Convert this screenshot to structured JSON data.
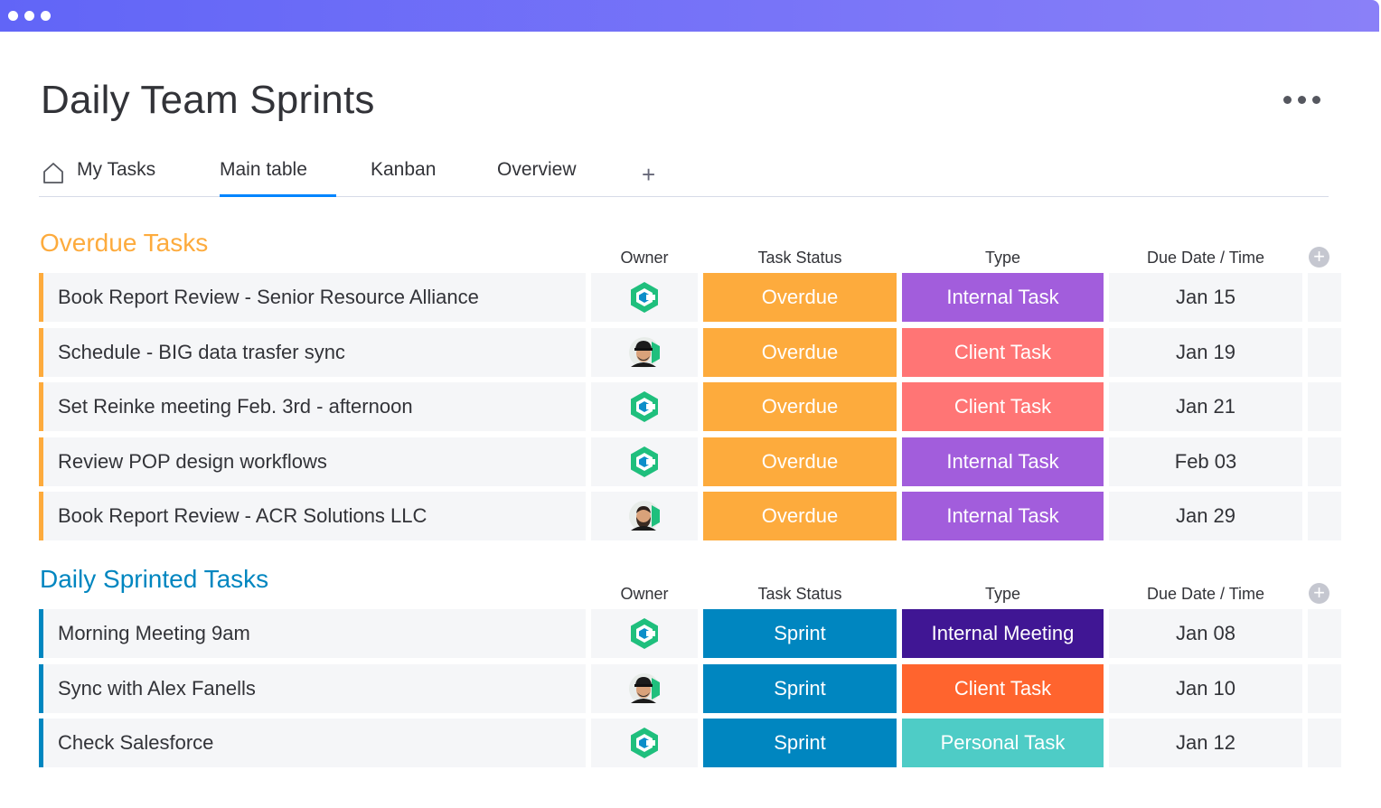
{
  "window": {
    "accent_from": "#6165f7",
    "accent_to": "#8a80f8"
  },
  "board": {
    "title": "Daily Team Sprints"
  },
  "tabs": [
    {
      "label": "My Tasks",
      "icon": "home-icon"
    },
    {
      "label": "Main table",
      "active": true
    },
    {
      "label": "Kanban"
    },
    {
      "label": "Overview"
    }
  ],
  "tab_add_label": "+",
  "columns": {
    "owner": "Owner",
    "status": "Task Status",
    "type": "Type",
    "due": "Due Date / Time"
  },
  "groups": [
    {
      "title": "Overdue Tasks",
      "color": "#fdab3d",
      "rows": [
        {
          "name": "Book Report Review - Senior Resource Alliance",
          "owner": "logo",
          "status": "Overdue",
          "status_color": "#fdab3d",
          "type": "Internal Task",
          "type_color": "#a25ddc",
          "due": "Jan 15"
        },
        {
          "name": "Schedule - BIG data trasfer sync",
          "owner": "person-cap",
          "status": "Overdue",
          "status_color": "#fdab3d",
          "type": "Client Task",
          "type_color": "#ff7575",
          "due": "Jan 19"
        },
        {
          "name": "Set Reinke meeting Feb. 3rd - afternoon",
          "owner": "logo",
          "status": "Overdue",
          "status_color": "#fdab3d",
          "type": "Client Task",
          "type_color": "#ff7575",
          "due": "Jan 21"
        },
        {
          "name": "Review POP design workflows",
          "owner": "logo",
          "status": "Overdue",
          "status_color": "#fdab3d",
          "type": "Internal Task",
          "type_color": "#a25ddc",
          "due": "Feb 03"
        },
        {
          "name": "Book Report Review - ACR Solutions LLC",
          "owner": "person-beard",
          "status": "Overdue",
          "status_color": "#fdab3d",
          "type": "Internal Task",
          "type_color": "#a25ddc",
          "due": "Jan 29"
        }
      ]
    },
    {
      "title": "Daily Sprinted Tasks",
      "color": "#0086c0",
      "rows": [
        {
          "name": "Morning Meeting 9am",
          "owner": "logo",
          "status": "Sprint",
          "status_color": "#0086c0",
          "type": "Internal Meeting",
          "type_color": "#401694",
          "due": "Jan 08"
        },
        {
          "name": "Sync with Alex Fanells",
          "owner": "person-cap",
          "status": "Sprint",
          "status_color": "#0086c0",
          "type": "Client Task",
          "type_color": "#ff642e",
          "due": "Jan 10"
        },
        {
          "name": "Check Salesforce",
          "owner": "logo",
          "status": "Sprint",
          "status_color": "#0086c0",
          "type": "Personal Task",
          "type_color": "#4eccc6",
          "due": "Jan 12"
        }
      ]
    }
  ]
}
